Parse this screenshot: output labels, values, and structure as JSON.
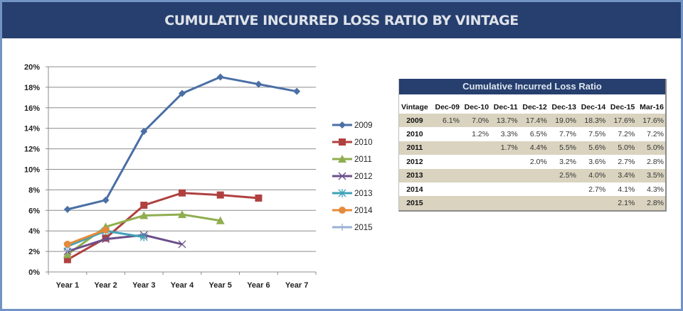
{
  "header": {
    "title": "CUMULATIVE INCURRED LOSS RATIO BY VINTAGE"
  },
  "colors": {
    "header_bg": "#263f6e",
    "frame": "#7393c4",
    "table_shade": "#d9d3bf"
  },
  "chart_data": {
    "type": "line",
    "title": "",
    "xlabel": "",
    "ylabel": "",
    "categories": [
      "Year 1",
      "Year 2",
      "Year 3",
      "Year 4",
      "Year 5",
      "Year 6",
      "Year 7"
    ],
    "ylim": [
      0,
      20
    ],
    "yticks": [
      "0%",
      "2%",
      "4%",
      "6%",
      "8%",
      "10%",
      "12%",
      "14%",
      "16%",
      "18%",
      "20%"
    ],
    "grid": true,
    "legend": "right",
    "series": [
      {
        "name": "2009",
        "color": "#4a6fa5",
        "marker": "diamond",
        "values": [
          6.1,
          7.0,
          13.7,
          17.4,
          19.0,
          18.3,
          17.6
        ]
      },
      {
        "name": "2010",
        "color": "#b04040",
        "marker": "square",
        "values": [
          1.2,
          3.3,
          6.5,
          7.7,
          7.5,
          7.2
        ]
      },
      {
        "name": "2011",
        "color": "#8fae4f",
        "marker": "triangle",
        "values": [
          1.7,
          4.4,
          5.5,
          5.6,
          5.0
        ]
      },
      {
        "name": "2012",
        "color": "#6b4f8a",
        "marker": "x",
        "values": [
          2.0,
          3.2,
          3.6,
          2.7
        ]
      },
      {
        "name": "2013",
        "color": "#3fa2b8",
        "marker": "star",
        "values": [
          2.5,
          4.0,
          3.4
        ]
      },
      {
        "name": "2014",
        "color": "#e58a3a",
        "marker": "circle",
        "values": [
          2.7,
          4.1
        ]
      },
      {
        "name": "2015",
        "color": "#9ab0d4",
        "marker": "plus",
        "values": [
          2.1
        ]
      }
    ]
  },
  "table": {
    "title": "Cumulative Incurred Loss Ratio",
    "columns": [
      "Vintage",
      "Dec-09",
      "Dec-10",
      "Dec-11",
      "Dec-12",
      "Dec-13",
      "Dec-14",
      "Dec-15",
      "Mar-16"
    ],
    "rows": [
      {
        "vintage": "2009",
        "cells": [
          "6.1%",
          "7.0%",
          "13.7%",
          "17.4%",
          "19.0%",
          "18.3%",
          "17.6%",
          "17.6%"
        ]
      },
      {
        "vintage": "2010",
        "cells": [
          "",
          "1.2%",
          "3.3%",
          "6.5%",
          "7.7%",
          "7.5%",
          "7.2%",
          "7.2%"
        ]
      },
      {
        "vintage": "2011",
        "cells": [
          "",
          "",
          "1.7%",
          "4.4%",
          "5.5%",
          "5.6%",
          "5.0%",
          "5.0%"
        ]
      },
      {
        "vintage": "2012",
        "cells": [
          "",
          "",
          "",
          "2.0%",
          "3.2%",
          "3.6%",
          "2.7%",
          "2.8%"
        ]
      },
      {
        "vintage": "2013",
        "cells": [
          "",
          "",
          "",
          "",
          "2.5%",
          "4.0%",
          "3.4%",
          "3.5%"
        ]
      },
      {
        "vintage": "2014",
        "cells": [
          "",
          "",
          "",
          "",
          "",
          "2.7%",
          "4.1%",
          "4.3%"
        ]
      },
      {
        "vintage": "2015",
        "cells": [
          "",
          "",
          "",
          "",
          "",
          "",
          "2.1%",
          "2.8%"
        ]
      }
    ]
  }
}
